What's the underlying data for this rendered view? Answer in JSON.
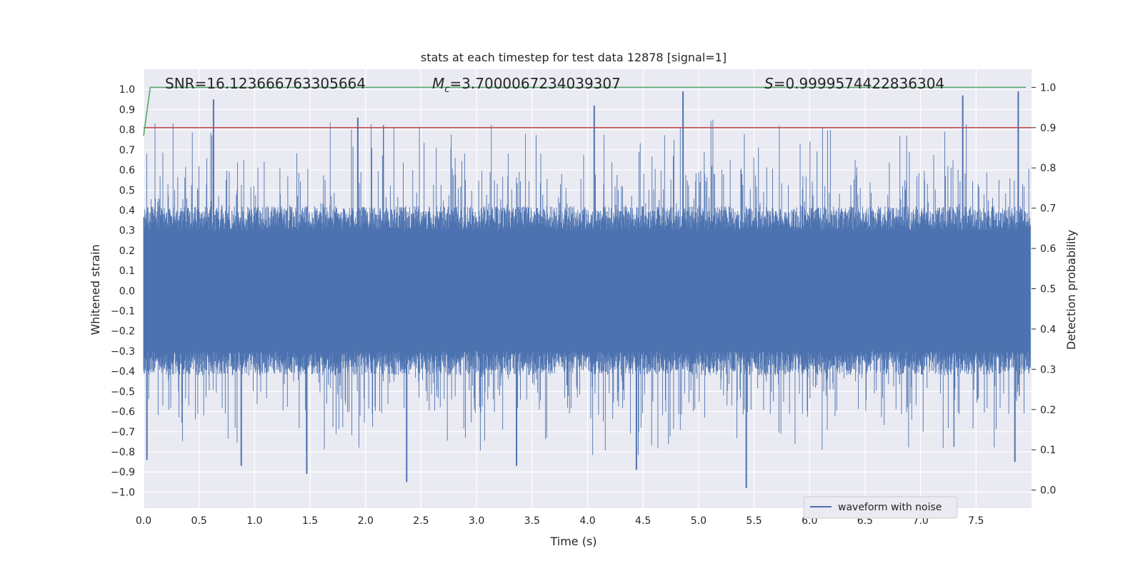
{
  "chart_data": {
    "type": "line",
    "title": "stats at each timestep for test data 12878 [signal=1]",
    "xlabel": "Time (s)",
    "ylabel_left": "Whitened strain",
    "ylabel_right": "Detection probability",
    "xlim": [
      0.0,
      8.0
    ],
    "ylim_left": [
      -1.08,
      1.1
    ],
    "ylim_right": [
      -0.045,
      1.045
    ],
    "x_ticks": [
      "0.0",
      "0.5",
      "1.0",
      "1.5",
      "2.0",
      "2.5",
      "3.0",
      "3.5",
      "4.0",
      "4.5",
      "5.0",
      "5.5",
      "6.0",
      "6.5",
      "7.0",
      "7.5"
    ],
    "x_tick_values": [
      0.0,
      0.5,
      1.0,
      1.5,
      2.0,
      2.5,
      3.0,
      3.5,
      4.0,
      4.5,
      5.0,
      5.5,
      6.0,
      6.5,
      7.0,
      7.5
    ],
    "y_left_ticks": [
      "1.0",
      "0.9",
      "0.8",
      "0.7",
      "0.6",
      "0.5",
      "0.4",
      "0.3",
      "0.2",
      "0.1",
      "0.0",
      "−0.1",
      "−0.2",
      "−0.3",
      "−0.4",
      "−0.5",
      "−0.6",
      "−0.7",
      "−0.8",
      "−0.9",
      "−1.0"
    ],
    "y_left_tick_values": [
      1.0,
      0.9,
      0.8,
      0.7,
      0.6,
      0.5,
      0.4,
      0.3,
      0.2,
      0.1,
      0.0,
      -0.1,
      -0.2,
      -0.3,
      -0.4,
      -0.5,
      -0.6,
      -0.7,
      -0.8,
      -0.9,
      -1.0
    ],
    "y_right_ticks": [
      "1.0",
      "0.9",
      "0.8",
      "0.7",
      "0.6",
      "0.5",
      "0.4",
      "0.3",
      "0.2",
      "0.1",
      "0.0"
    ],
    "y_right_tick_values": [
      1.0,
      0.9,
      0.8,
      0.7,
      0.6,
      0.5,
      0.4,
      0.3,
      0.2,
      0.1,
      0.0
    ],
    "annotations": {
      "snr": "SNR=16.123666763305664",
      "mc_symbol": "M",
      "mc_subscript": "c",
      "mc_value": "=3.7000067234039307",
      "s_symbol": "S",
      "s_value": "=0.9999574422836304"
    },
    "legend": {
      "label": "waveform with noise",
      "placement": "lower-right"
    },
    "series": [
      {
        "name": "waveform with noise",
        "axis": "left",
        "color": "#4c72b0",
        "kind": "noise",
        "x_range": [
          0.0,
          7.99
        ],
        "core_amplitude": 0.3,
        "notable_peaks": [
          {
            "x": 0.63,
            "y": 0.95
          },
          {
            "x": 1.93,
            "y": 0.86
          },
          {
            "x": 4.06,
            "y": 0.92
          },
          {
            "x": 4.86,
            "y": 0.99
          },
          {
            "x": 7.38,
            "y": 0.97
          },
          {
            "x": 7.88,
            "y": 0.99
          },
          {
            "x": 5.43,
            "y": -0.98
          },
          {
            "x": 2.37,
            "y": -0.95
          },
          {
            "x": 1.47,
            "y": -0.91
          },
          {
            "x": 0.03,
            "y": -0.84
          },
          {
            "x": 7.85,
            "y": -0.85
          },
          {
            "x": 4.44,
            "y": -0.89
          },
          {
            "x": 3.36,
            "y": -0.87
          },
          {
            "x": 0.88,
            "y": -0.87
          }
        ]
      },
      {
        "name": "detection probability",
        "axis": "right",
        "color": "#55a868",
        "x": [
          0.0,
          0.06,
          7.95
        ],
        "y": [
          0.88,
          1.0,
          1.0
        ]
      },
      {
        "name": "threshold",
        "axis": "right",
        "color": "#c44e52",
        "x": [
          0.0,
          8.0
        ],
        "y": [
          0.9,
          0.9
        ]
      }
    ]
  },
  "colors": {
    "plot_background": "#eaeaf2",
    "grid": "#ffffff",
    "text": "#262626"
  }
}
